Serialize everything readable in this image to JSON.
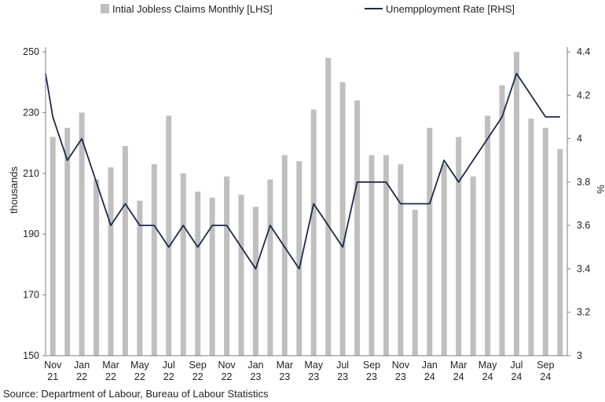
{
  "source": "Source: Department of Labour, Bureau of Labour Statistics",
  "colors": {
    "bar": "#bfbfbf",
    "line": "#1c2a4a"
  },
  "chart_data": {
    "type": "bar+line",
    "legend": {
      "position": "top",
      "bar_label": "Intial Jobless Claims Monthly [LHS]",
      "line_label": "Unempployment Rate [RHS]"
    },
    "ylabel_left": "thousands",
    "ylabel_right": "%",
    "ylim_left": [
      150,
      250
    ],
    "ylim_right": [
      3,
      4.4
    ],
    "yticks_left": [
      "150",
      "170",
      "190",
      "210",
      "230",
      "250"
    ],
    "yticks_right": [
      "3",
      "3.2",
      "3.4",
      "3.6",
      "3.8",
      "4",
      "4.2",
      "4.4"
    ],
    "grid": false,
    "x_tick_labels": [
      [
        "Nov",
        "21"
      ],
      [
        "Jan",
        "22"
      ],
      [
        "Mar",
        "22"
      ],
      [
        "May",
        "22"
      ],
      [
        "Jul",
        "22"
      ],
      [
        "Sep",
        "22"
      ],
      [
        "Nov",
        "22"
      ],
      [
        "Jan",
        "23"
      ],
      [
        "Mar",
        "23"
      ],
      [
        "May",
        "23"
      ],
      [
        "Jul",
        "23"
      ],
      [
        "Sep",
        "23"
      ],
      [
        "Nov",
        "23"
      ],
      [
        "Jan",
        "24"
      ],
      [
        "Mar",
        "24"
      ],
      [
        "May",
        "24"
      ],
      [
        "Jul",
        "24"
      ],
      [
        "Sep",
        "24"
      ]
    ],
    "categories": [
      "Nov 21",
      "Dec 21",
      "Jan 22",
      "Feb 22",
      "Mar 22",
      "Apr 22",
      "May 22",
      "Jun 22",
      "Jul 22",
      "Aug 22",
      "Sep 22",
      "Oct 22",
      "Nov 22",
      "Dec 22",
      "Jan 23",
      "Feb 23",
      "Mar 23",
      "Apr 23",
      "May 23",
      "Jun 23",
      "Jul 23",
      "Aug 23",
      "Sep 23",
      "Oct 23",
      "Nov 23",
      "Dec 23",
      "Jan 24",
      "Feb 24",
      "Mar 24",
      "Apr 24",
      "May 24",
      "Jun 24",
      "Jul 24",
      "Aug 24",
      "Sep 24",
      "Oct 24"
    ],
    "series": [
      {
        "name": "Intial Jobless Claims Monthly [LHS]",
        "type": "bar",
        "axis": "left",
        "values": [
          222,
          225,
          230,
          208,
          212,
          219,
          201,
          213,
          229,
          210,
          204,
          202,
          209,
          203,
          199,
          208,
          216,
          214,
          231,
          248,
          240,
          234,
          216,
          216,
          213,
          198,
          225,
          213,
          222,
          209,
          229,
          239,
          250,
          228,
          225,
          218
        ]
      },
      {
        "name": "Unempployment Rate [RHS]",
        "type": "line",
        "axis": "right",
        "start_value": 4.3,
        "values": [
          4.1,
          3.9,
          4.0,
          3.8,
          3.6,
          3.7,
          3.6,
          3.6,
          3.5,
          3.6,
          3.5,
          3.6,
          3.6,
          3.5,
          3.4,
          3.6,
          3.5,
          3.4,
          3.7,
          3.6,
          3.5,
          3.8,
          3.8,
          3.8,
          3.7,
          3.7,
          3.7,
          3.9,
          3.8,
          3.9,
          4.0,
          4.1,
          4.3,
          4.2,
          4.1,
          4.1
        ]
      }
    ]
  }
}
